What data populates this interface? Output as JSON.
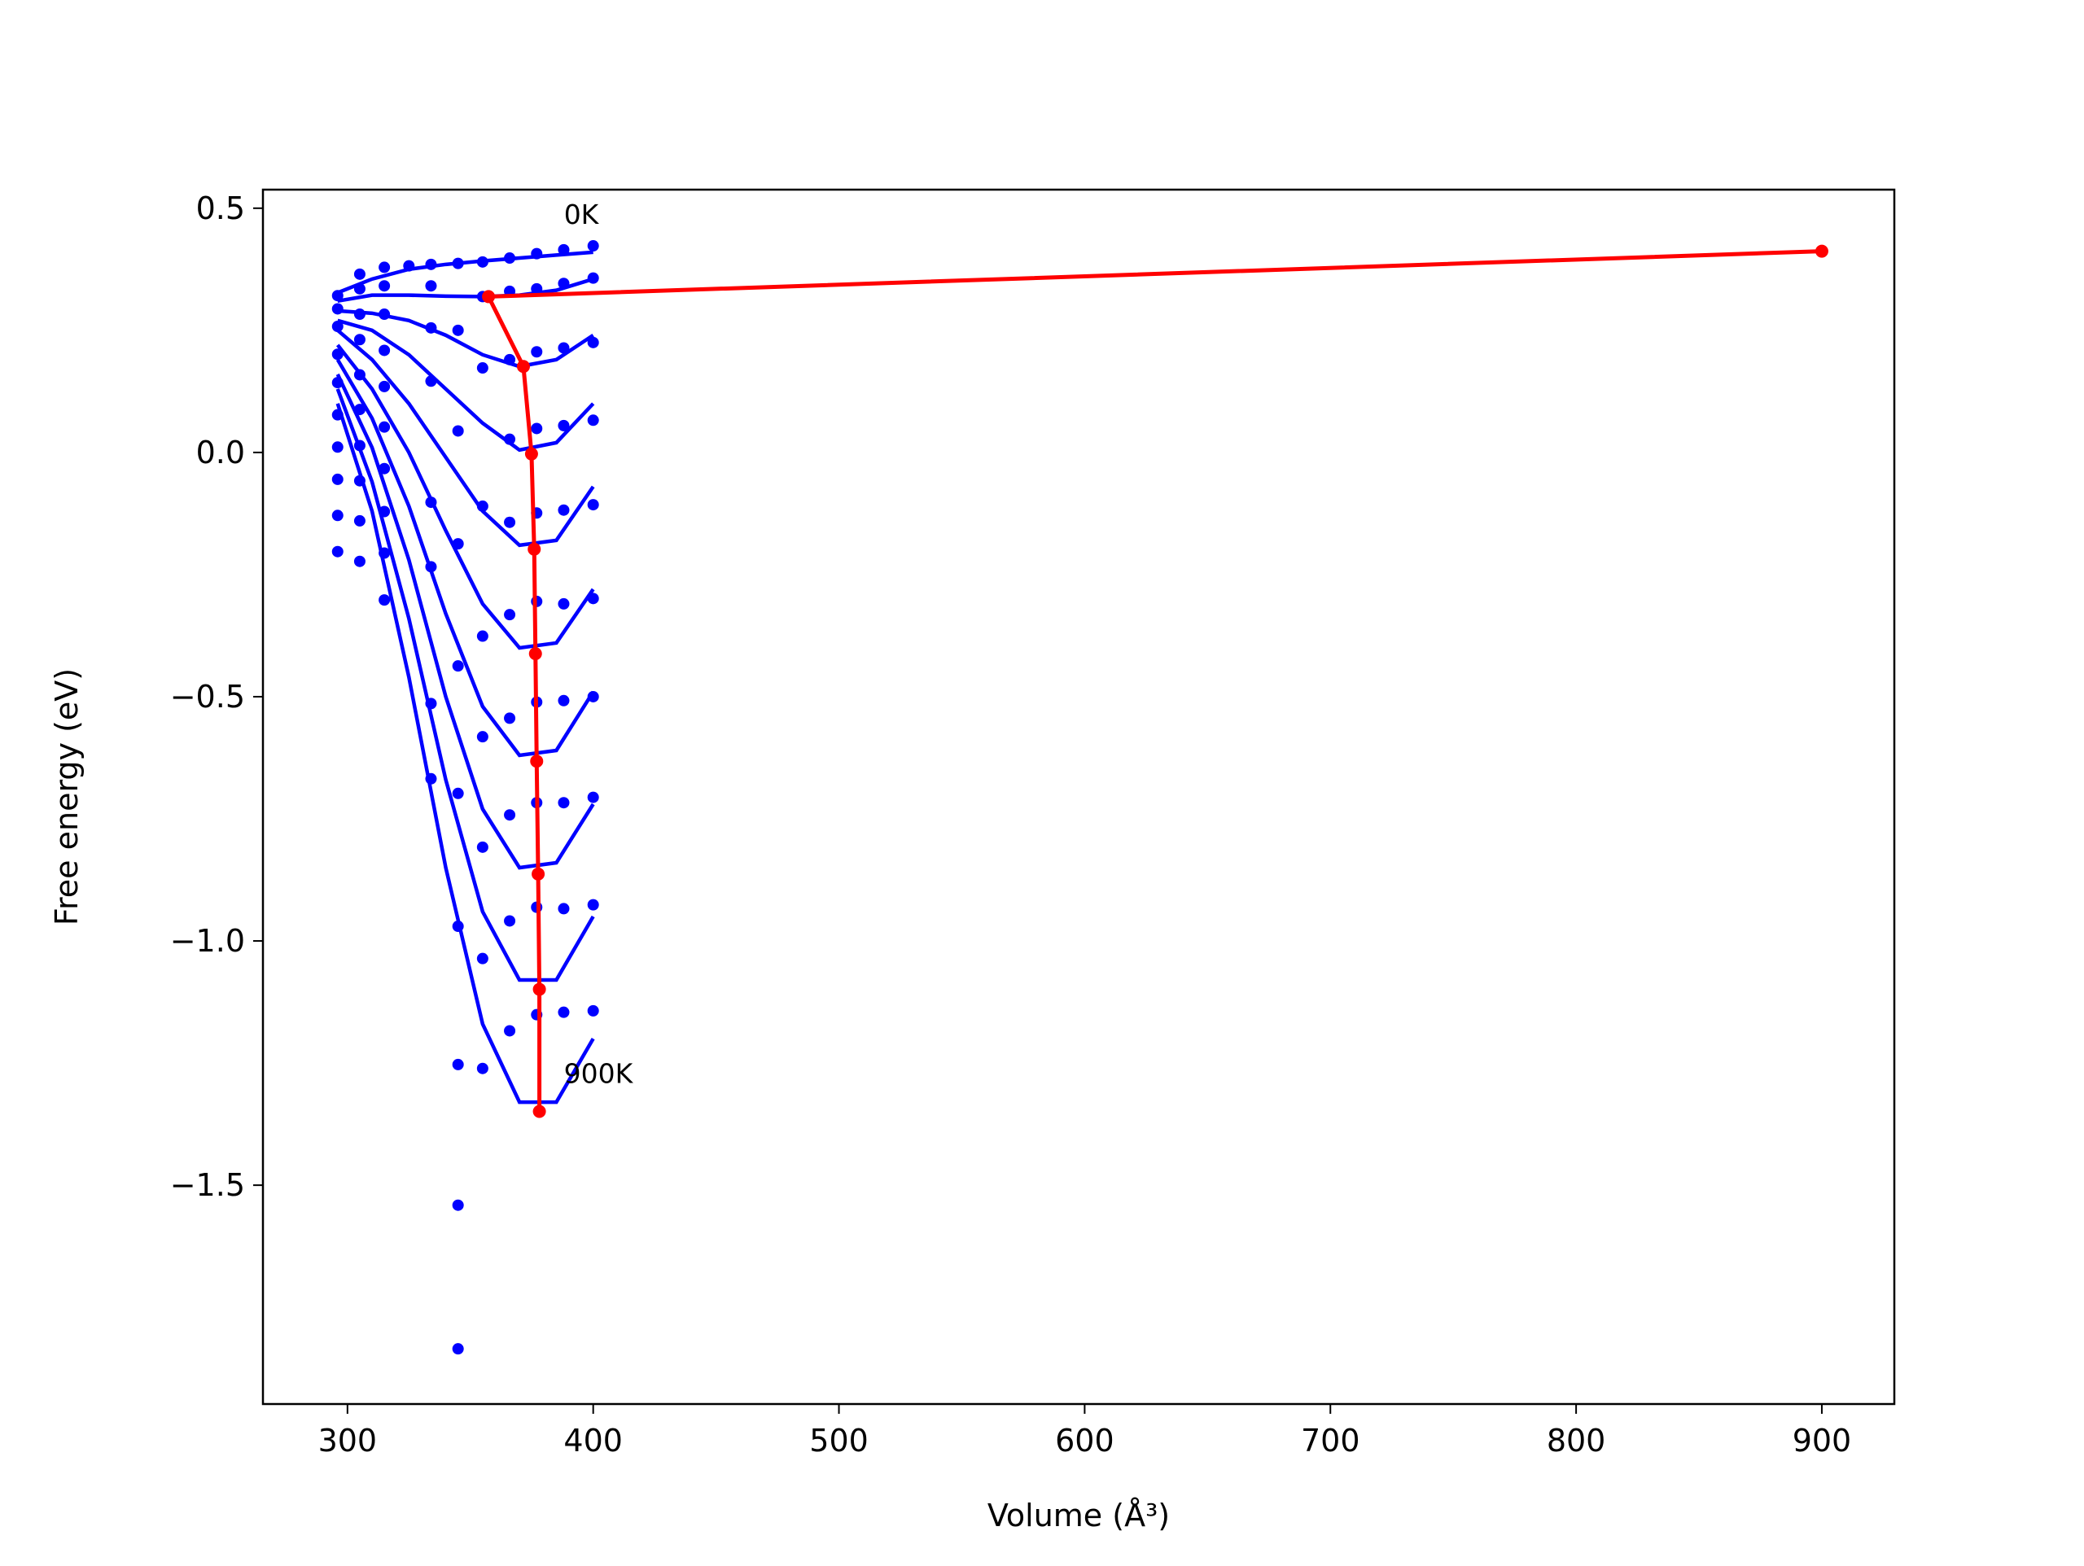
{
  "chart_data": {
    "type": "scatter",
    "xlabel": "Volume (Å³)",
    "ylabel": "Free energy (eV)",
    "xlim": [
      265.6,
      929.5
    ],
    "ylim": [
      -1.948,
      0.538
    ],
    "xticks": [
      300,
      400,
      500,
      600,
      700,
      800,
      900
    ],
    "yticks": [
      0.5,
      {
        "value": 0,
        "label": "0.0"
      },
      {
        "value": -0.5,
        "label": "−0.5"
      },
      {
        "value": -1.0,
        "label": "−1.0"
      },
      {
        "value": -1.5,
        "label": "−1.5"
      }
    ],
    "annotations": [
      "0K",
      "900K"
    ],
    "points": {
      "color": "#0000ff",
      "x": [
        296,
        296,
        296,
        296,
        296,
        296,
        296,
        296,
        296,
        296,
        305,
        305,
        305,
        305,
        305,
        305,
        305,
        305,
        305,
        305,
        315,
        315,
        315,
        315,
        315,
        315,
        315,
        315,
        315,
        315,
        325,
        334,
        334,
        334,
        334,
        334,
        334,
        334,
        334,
        345,
        345,
        345,
        345,
        345,
        345,
        345,
        345,
        345,
        345,
        355,
        355,
        355,
        355,
        355,
        355,
        355,
        355,
        355,
        366,
        366,
        366,
        366,
        366,
        366,
        366,
        366,
        366,
        366,
        377,
        377,
        377,
        377,
        377,
        377,
        377,
        377,
        377,
        377,
        388,
        388,
        388,
        388,
        388,
        388,
        388,
        388,
        388,
        388,
        400,
        400,
        400,
        400,
        400,
        400,
        400,
        400,
        400,
        400
      ],
      "y": [
        0.321,
        0.294,
        0.258,
        0.201,
        0.143,
        0.077,
        0.011,
        -0.055,
        -0.129,
        -0.203,
        0.365,
        0.335,
        0.283,
        0.231,
        0.159,
        0.088,
        0.014,
        -0.058,
        -0.14,
        -0.223,
        0.379,
        0.341,
        0.283,
        0.209,
        0.135,
        0.052,
        -0.033,
        -0.121,
        -0.206,
        -0.302,
        0.382,
        0.385,
        0.341,
        0.255,
        0.146,
        -0.102,
        -0.234,
        -0.514,
        -0.668,
        0.387,
        0.25,
        0.044,
        -0.187,
        -0.437,
        -0.698,
        -0.97,
        -1.253,
        -1.541,
        -1.835,
        0.39,
        0.319,
        0.173,
        -0.11,
        -0.376,
        -0.582,
        -0.808,
        -1.036,
        -1.261,
        0.398,
        0.33,
        0.19,
        0.027,
        -0.143,
        -0.332,
        -0.544,
        -0.742,
        -0.959,
        -1.184,
        0.407,
        0.335,
        0.206,
        0.049,
        -0.124,
        -0.305,
        -0.511,
        -0.717,
        -0.931,
        -1.151,
        0.415,
        0.346,
        0.214,
        0.055,
        -0.118,
        -0.31,
        -0.508,
        -0.717,
        -0.934,
        -1.146,
        0.423,
        0.357,
        0.225,
        0.066,
        -0.107,
        -0.299,
        -0.5,
        -0.706,
        -0.926,
        -1.143
      ]
    },
    "fits": {
      "color": "#0000ff",
      "x": [
        296,
        310,
        325,
        340,
        355,
        370,
        385,
        400
      ],
      "series": [
        [
          0.327,
          0.355,
          0.375,
          0.385,
          0.392,
          0.398,
          0.404,
          0.41
        ],
        [
          0.31,
          0.322,
          0.322,
          0.32,
          0.319,
          0.322,
          0.332,
          0.355
        ],
        [
          0.29,
          0.285,
          0.27,
          0.24,
          0.2,
          0.176,
          0.19,
          0.24
        ],
        [
          0.27,
          0.25,
          0.2,
          0.13,
          0.06,
          0.005,
          0.02,
          0.1
        ],
        [
          0.25,
          0.19,
          0.1,
          -0.01,
          -0.12,
          -0.19,
          -0.18,
          -0.07
        ],
        [
          0.22,
          0.13,
          0.0,
          -0.16,
          -0.31,
          -0.4,
          -0.39,
          -0.28
        ],
        [
          0.19,
          0.07,
          -0.11,
          -0.33,
          -0.52,
          -0.62,
          -0.61,
          -0.49
        ],
        [
          0.16,
          0.01,
          -0.22,
          -0.5,
          -0.73,
          -0.85,
          -0.84,
          -0.72
        ],
        [
          0.13,
          -0.06,
          -0.34,
          -0.67,
          -0.94,
          -1.08,
          -1.08,
          -0.95
        ],
        [
          0.1,
          -0.12,
          -0.46,
          -0.85,
          -1.17,
          -1.33,
          -1.33,
          -1.2
        ]
      ]
    },
    "equilibrium": {
      "color": "#ff0000",
      "x": [
        900,
        357.4,
        371.6,
        374.9,
        376,
        376.5,
        377,
        377.6,
        378.1,
        378.1
      ],
      "y": [
        0.412,
        0.319,
        0.176,
        -0.003,
        -0.198,
        -0.412,
        -0.632,
        -0.863,
        -1.099,
        -1.349
      ]
    }
  }
}
